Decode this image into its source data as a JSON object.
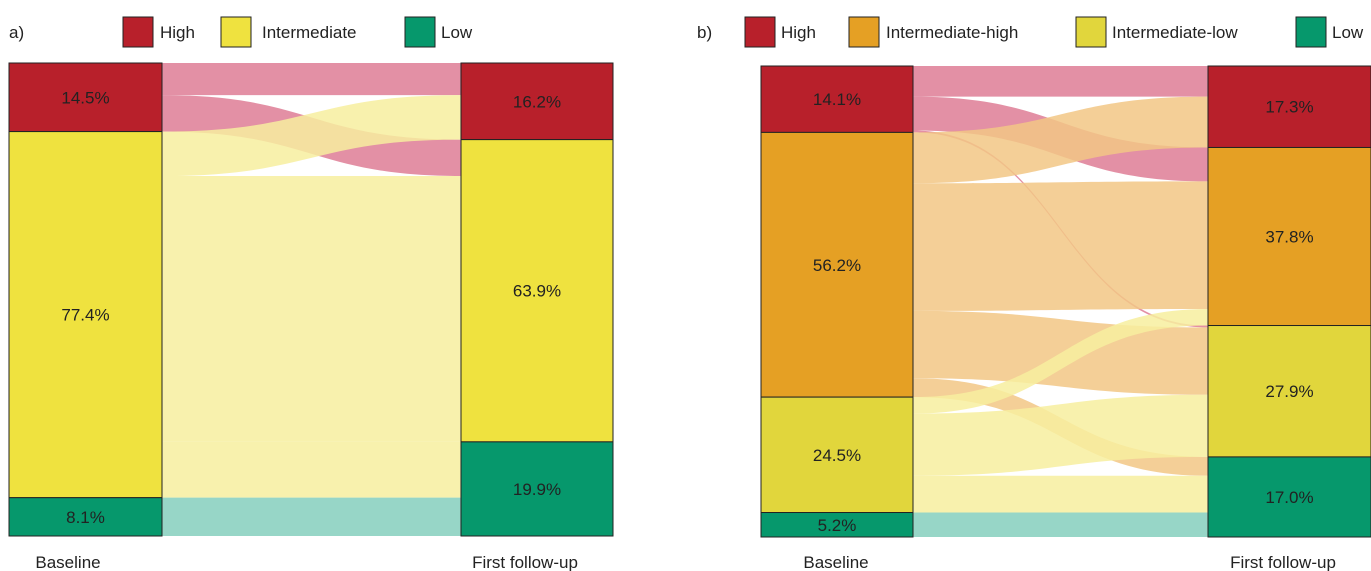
{
  "chart_data": [
    {
      "type": "sankey",
      "panel_label": "a)",
      "legend": [
        "High",
        "Intermediate",
        "Low"
      ],
      "colors": {
        "High": "#b8202b",
        "Intermediate": "#efe23f",
        "Low": "#06986c"
      },
      "flow_colors": {
        "High": "#de7c95",
        "Intermediate": "#f7ee9f",
        "Low": "#85cfbd"
      },
      "stages": [
        "Baseline",
        "First follow-up"
      ],
      "baseline": [
        {
          "category": "High",
          "percent": 14.5,
          "label": "14.5%"
        },
        {
          "category": "Intermediate",
          "percent": 77.4,
          "label": "77.4%"
        },
        {
          "category": "Low",
          "percent": 8.1,
          "label": "8.1%"
        }
      ],
      "follow_up": [
        {
          "category": "High",
          "percent": 16.2,
          "label": "16.2%"
        },
        {
          "category": "Intermediate",
          "percent": 63.9,
          "label": "63.9%"
        },
        {
          "category": "Low",
          "percent": 19.9,
          "label": "19.9%"
        }
      ],
      "flows": [
        {
          "from": "High",
          "to": "High",
          "value": 6.8
        },
        {
          "from": "High",
          "to": "Intermediate",
          "value": 7.7
        },
        {
          "from": "Intermediate",
          "to": "High",
          "value": 9.4
        },
        {
          "from": "Intermediate",
          "to": "Intermediate",
          "value": 56.2
        },
        {
          "from": "Intermediate",
          "to": "Low",
          "value": 11.8
        },
        {
          "from": "Low",
          "to": "Low",
          "value": 8.1
        }
      ]
    },
    {
      "type": "sankey",
      "panel_label": "b)",
      "legend": [
        "High",
        "Intermediate-high",
        "Intermediate-low",
        "Low"
      ],
      "colors": {
        "High": "#b8202b",
        "Intermediate-high": "#e5a024",
        "Intermediate-low": "#e1d63c",
        "Low": "#06986c"
      },
      "flow_colors": {
        "High": "#de7c95",
        "Intermediate-high": "#f2c785",
        "Intermediate-low": "#f7ee9f",
        "Low": "#85cfbd"
      },
      "stages": [
        "Baseline",
        "First follow-up"
      ],
      "baseline": [
        {
          "category": "High",
          "percent": 14.1,
          "label": "14.1%"
        },
        {
          "category": "Intermediate-high",
          "percent": 56.2,
          "label": "56.2%"
        },
        {
          "category": "Intermediate-low",
          "percent": 24.5,
          "label": "24.5%"
        },
        {
          "category": "Low",
          "percent": 5.2,
          "label": "5.2%"
        }
      ],
      "follow_up": [
        {
          "category": "High",
          "percent": 17.3,
          "label": "17.3%"
        },
        {
          "category": "Intermediate-high",
          "percent": 37.8,
          "label": "37.8%"
        },
        {
          "category": "Intermediate-low",
          "percent": 27.9,
          "label": "27.9%"
        },
        {
          "category": "Low",
          "percent": 17.0,
          "label": "17.0%"
        }
      ],
      "flows": [
        {
          "from": "High",
          "to": "High",
          "value": 6.5
        },
        {
          "from": "High",
          "to": "Intermediate-high",
          "value": 7.2
        },
        {
          "from": "High",
          "to": "Intermediate-low",
          "value": 0.4
        },
        {
          "from": "Intermediate-high",
          "to": "High",
          "value": 10.8
        },
        {
          "from": "Intermediate-high",
          "to": "Intermediate-high",
          "value": 27.1
        },
        {
          "from": "Intermediate-high",
          "to": "Intermediate-low",
          "value": 14.3
        },
        {
          "from": "Intermediate-high",
          "to": "Low",
          "value": 4.0
        },
        {
          "from": "Intermediate-low",
          "to": "Intermediate-high",
          "value": 3.5
        },
        {
          "from": "Intermediate-low",
          "to": "Intermediate-low",
          "value": 13.2
        },
        {
          "from": "Intermediate-low",
          "to": "Low",
          "value": 7.8
        },
        {
          "from": "Low",
          "to": "Low",
          "value": 5.2
        }
      ]
    }
  ]
}
